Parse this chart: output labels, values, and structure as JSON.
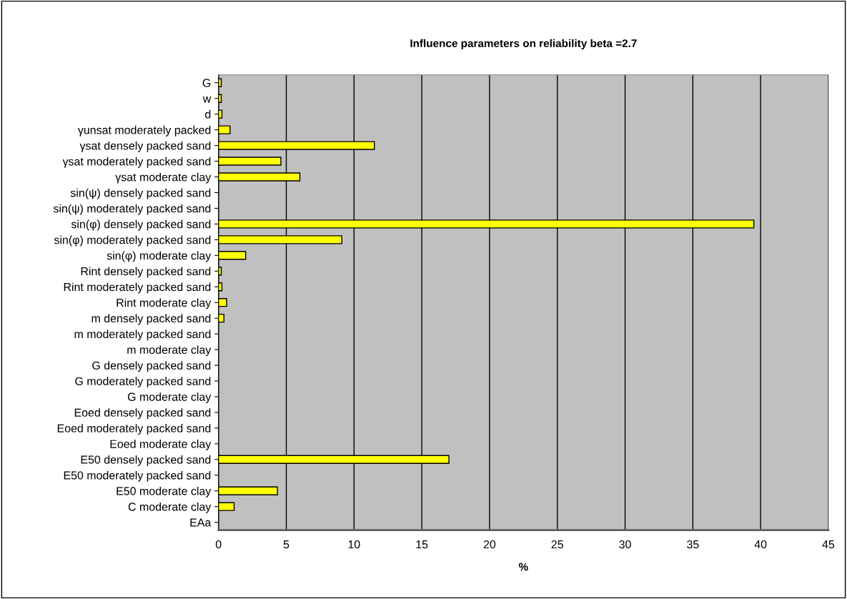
{
  "chart_data": {
    "type": "bar",
    "orientation": "horizontal",
    "title": "Influence parameters on reliability beta =2.7",
    "xlabel": "%",
    "categories": [
      "G",
      "w",
      "d",
      "γunsat moderately packed",
      "γsat densely packed sand",
      "γsat moderately packed sand",
      "γsat moderate clay",
      "sin(ψ) densely packed sand",
      "sin(ψ) moderately packed sand",
      "sin(φ) densely packed sand",
      "sin(φ) moderately packed sand",
      "sin(φ) moderate clay",
      "Rint densely packed sand",
      "Rint moderately packed sand",
      "Rint moderate clay",
      "m densely packed sand",
      "m moderately packed sand",
      "m moderate clay",
      "G densely packed sand",
      "G moderately packed sand",
      "G moderate clay",
      "Eoed densely packed sand",
      "Eoed moderately packed sand",
      "Eoed moderate clay",
      "E50 densely packed sand",
      "E50 moderately packed sand",
      "E50 moderate clay",
      "C moderate clay",
      "EAa"
    ],
    "values": [
      0.2,
      0.2,
      0.25,
      0.85,
      11.5,
      4.6,
      6.0,
      0,
      0,
      39.5,
      9.1,
      2.0,
      0.2,
      0.25,
      0.6,
      0.4,
      0,
      0,
      0,
      0,
      0,
      0,
      0,
      0,
      17.0,
      0,
      4.35,
      1.15,
      0
    ],
    "color": "#ffff00",
    "xlim": [
      0,
      45
    ],
    "xticks": [
      0,
      5,
      10,
      15,
      20,
      25,
      30,
      35,
      40,
      45
    ],
    "grid": "x"
  }
}
